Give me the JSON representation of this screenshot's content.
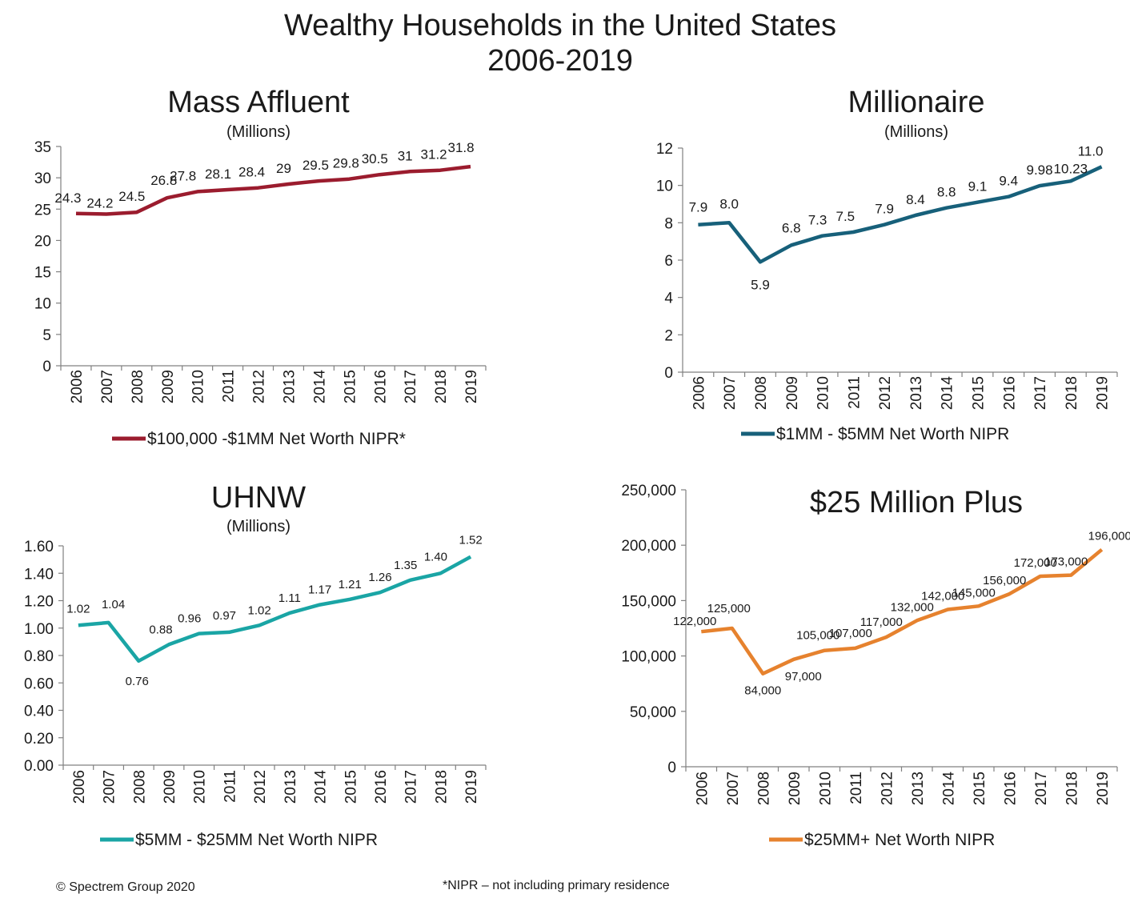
{
  "page": {
    "title_line1": "Wealthy Households in the United States",
    "title_line2": "2006-2019",
    "copyright": "© Spectrem Group 2020",
    "footnote": "*NIPR – not including primary residence"
  },
  "chart_data": [
    {
      "type": "line",
      "title": "Mass Affluent",
      "subtitle": "(Millions)",
      "categories": [
        "2006",
        "2007",
        "2008",
        "2009",
        "2010",
        "2011",
        "2012",
        "2013",
        "2014",
        "2015",
        "2016",
        "2017",
        "2018",
        "2019"
      ],
      "series": [
        {
          "name": "$100,000 -$1MM Net Worth NIPR*",
          "values": [
            24.3,
            24.2,
            24.5,
            26.8,
            27.8,
            28.1,
            28.4,
            29,
            29.5,
            29.8,
            30.5,
            31,
            31.2,
            31.8
          ],
          "color": "#9b1c2e"
        }
      ],
      "data_labels": [
        "24.3",
        "24.2",
        "24.5",
        "26.8",
        "27.8",
        "28.1",
        "28.4",
        "29",
        "29.5",
        "29.8",
        "30.5",
        "31",
        "31.2",
        "31.8"
      ],
      "yticks": [
        "0",
        "5",
        "10",
        "15",
        "20",
        "25",
        "30",
        "35"
      ],
      "ylim": [
        0,
        35
      ]
    },
    {
      "type": "line",
      "title": "Millionaire",
      "subtitle": "(Millions)",
      "categories": [
        "2006",
        "2007",
        "2008",
        "2009",
        "2010",
        "2011",
        "2012",
        "2013",
        "2014",
        "2015",
        "2016",
        "2017",
        "2018",
        "2019"
      ],
      "series": [
        {
          "name": "$1MM - $5MM Net Worth NIPR",
          "values": [
            7.9,
            8.0,
            5.9,
            6.8,
            7.3,
            7.5,
            7.9,
            8.4,
            8.8,
            9.1,
            9.4,
            9.98,
            10.23,
            11.0
          ],
          "color": "#17607a"
        }
      ],
      "data_labels": [
        "7.9",
        "8.0",
        "5.9",
        "6.8",
        "7.3",
        "7.5",
        "7.9",
        "8.4",
        "8.8",
        "9.1",
        "9.4",
        "9.98",
        "10.23",
        "11.0"
      ],
      "yticks": [
        "0",
        "2",
        "4",
        "6",
        "8",
        "10",
        "12"
      ],
      "ylim": [
        0,
        12
      ]
    },
    {
      "type": "line",
      "title": "UHNW",
      "subtitle": "(Millions)",
      "categories": [
        "2006",
        "2007",
        "2008",
        "2009",
        "2010",
        "2011",
        "2012",
        "2013",
        "2014",
        "2015",
        "2016",
        "2017",
        "2018",
        "2019"
      ],
      "series": [
        {
          "name": "$5MM - $25MM Net Worth NIPR",
          "values": [
            1.02,
            1.04,
            0.76,
            0.88,
            0.96,
            0.97,
            1.02,
            1.11,
            1.17,
            1.21,
            1.26,
            1.35,
            1.4,
            1.52
          ],
          "color": "#1aa5a5"
        }
      ],
      "data_labels": [
        "1.02",
        "1.04",
        "0.76",
        "0.88",
        "0.96",
        "0.97",
        "1.02",
        "1.11",
        "1.17",
        "1.21",
        "1.26",
        "1.35",
        "1.40",
        "1.52"
      ],
      "yticks": [
        "0.00",
        "0.20",
        "0.40",
        "0.60",
        "0.80",
        "1.00",
        "1.20",
        "1.40",
        "1.60"
      ],
      "ylim": [
        0,
        1.6
      ]
    },
    {
      "type": "line",
      "title": "$25 Million Plus",
      "subtitle": "",
      "categories": [
        "2006",
        "2007",
        "2008",
        "2009",
        "2010",
        "2011",
        "2012",
        "2013",
        "2014",
        "2015",
        "2016",
        "2017",
        "2018",
        "2019"
      ],
      "series": [
        {
          "name": "$25MM+ Net Worth NIPR",
          "values": [
            122000,
            125000,
            84000,
            97000,
            105000,
            107000,
            117000,
            132000,
            142000,
            145000,
            156000,
            172000,
            173000,
            196000
          ],
          "color": "#e6822e"
        }
      ],
      "data_labels": [
        "122,000",
        "125,000",
        "84,000",
        "97,000",
        "105,000",
        "107,000",
        "117,000",
        "132,000",
        "142,000",
        "145,000",
        "156,000",
        "172,000",
        "173,000",
        "196,000"
      ],
      "yticks": [
        "0",
        "50,000",
        "100,000",
        "150,000",
        "200,000",
        "250,000"
      ],
      "ylim": [
        0,
        250000
      ]
    }
  ]
}
